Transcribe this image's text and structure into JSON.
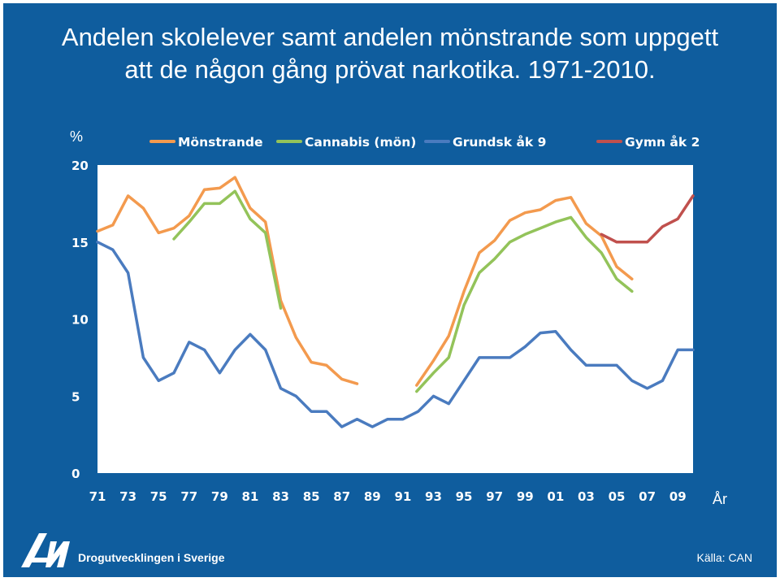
{
  "title_lines": [
    "Andelen skolelever samt andelen mönstrande som uppgett",
    "att de någon gång prövat narkotika. 1971-2010."
  ],
  "footer": {
    "organization": "Drogutvecklingen i Sverige",
    "source": "Källa: CAN",
    "logo_text": "CAN"
  },
  "colors": {
    "background": "#0f5d9e",
    "plot_area": "#ffffff",
    "monstrande": "#f39a4e",
    "cannabis": "#93c35a",
    "grundsk": "#4a7bbf",
    "gymn": "#c0504d"
  },
  "chart_data": {
    "type": "line",
    "title": "Andelen skolelever samt andelen mönstrande som uppgett att de någon gång prövat narkotika. 1971-2010.",
    "ylabel": "%",
    "xlabel": "År",
    "ylim": [
      0,
      20
    ],
    "yticks": [
      "0",
      "5",
      "10",
      "15",
      "20"
    ],
    "xticks": [
      "71",
      "73",
      "75",
      "77",
      "79",
      "81",
      "83",
      "85",
      "87",
      "89",
      "91",
      "93",
      "95",
      "97",
      "99",
      "01",
      "03",
      "05",
      "07",
      "09"
    ],
    "legend_position": "top",
    "series": [
      {
        "name": "Mönstrande",
        "color_key": "monstrande",
        "segments": [
          [
            [
              1971,
              15.7
            ],
            [
              1972,
              16.1
            ],
            [
              1973,
              18.0
            ],
            [
              1974,
              17.2
            ],
            [
              1975,
              15.6
            ],
            [
              1976,
              15.9
            ],
            [
              1977,
              16.7
            ],
            [
              1978,
              18.4
            ],
            [
              1979,
              18.5
            ],
            [
              1980,
              19.2
            ],
            [
              1981,
              17.2
            ],
            [
              1982,
              16.3
            ],
            [
              1983,
              11.2
            ],
            [
              1984,
              8.8
            ],
            [
              1985,
              7.2
            ],
            [
              1986,
              7.0
            ],
            [
              1987,
              6.1
            ],
            [
              1988,
              5.8
            ]
          ],
          [
            [
              1991.9,
              5.7
            ],
            [
              1993,
              7.3
            ],
            [
              1994,
              8.9
            ],
            [
              1995,
              11.8
            ],
            [
              1996,
              14.3
            ],
            [
              1997,
              15.1
            ],
            [
              1998,
              16.4
            ],
            [
              1999,
              16.9
            ],
            [
              2000,
              17.1
            ],
            [
              2001,
              17.7
            ],
            [
              2002,
              17.9
            ],
            [
              2003,
              16.2
            ],
            [
              2004,
              15.4
            ],
            [
              2005,
              13.4
            ],
            [
              2006,
              12.6
            ]
          ]
        ]
      },
      {
        "name": "Cannabis (mön)",
        "color_key": "cannabis",
        "segments": [
          [
            [
              1976,
              15.2
            ],
            [
              1977,
              16.3
            ],
            [
              1978,
              17.5
            ],
            [
              1979,
              17.5
            ],
            [
              1980,
              18.3
            ],
            [
              1981,
              16.5
            ],
            [
              1982,
              15.6
            ],
            [
              1983,
              10.7
            ]
          ],
          [
            [
              1991.9,
              5.3
            ],
            [
              1993,
              6.5
            ],
            [
              1994,
              7.5
            ],
            [
              1995,
              10.9
            ],
            [
              1996,
              13.0
            ],
            [
              1997,
              13.9
            ],
            [
              1998,
              15.0
            ],
            [
              1999,
              15.5
            ],
            [
              2000,
              15.9
            ],
            [
              2001,
              16.3
            ],
            [
              2002,
              16.6
            ],
            [
              2003,
              15.3
            ],
            [
              2004,
              14.3
            ],
            [
              2005,
              12.6
            ],
            [
              2006,
              11.8
            ]
          ]
        ]
      },
      {
        "name": "Grundsk åk 9",
        "color_key": "grundsk",
        "segments": [
          [
            [
              1971,
              15.0
            ],
            [
              1972,
              14.5
            ],
            [
              1973,
              13.0
            ],
            [
              1974,
              7.5
            ],
            [
              1975,
              6.0
            ],
            [
              1976,
              6.5
            ],
            [
              1977,
              8.5
            ],
            [
              1978,
              8.0
            ],
            [
              1979,
              6.5
            ],
            [
              1980,
              8.0
            ],
            [
              1981,
              9.0
            ],
            [
              1982,
              8.0
            ],
            [
              1983,
              5.5
            ],
            [
              1984,
              5.0
            ],
            [
              1985,
              4.0
            ],
            [
              1986,
              4.0
            ],
            [
              1987,
              3.0
            ],
            [
              1988,
              3.5
            ],
            [
              1989,
              3.0
            ],
            [
              1990,
              3.5
            ],
            [
              1991,
              3.5
            ],
            [
              1992,
              4.0
            ],
            [
              1993,
              5.0
            ],
            [
              1994,
              4.5
            ],
            [
              1995,
              6.0
            ],
            [
              1996,
              7.5
            ],
            [
              1997,
              7.5
            ],
            [
              1998,
              7.5
            ],
            [
              1999,
              8.2
            ],
            [
              2000,
              9.1
            ],
            [
              2001,
              9.2
            ],
            [
              2002,
              8.0
            ],
            [
              2003,
              7.0
            ],
            [
              2004,
              7.0
            ],
            [
              2005,
              7.0
            ],
            [
              2006,
              6.0
            ],
            [
              2007,
              5.5
            ],
            [
              2008,
              6.0
            ],
            [
              2009,
              8.0
            ],
            [
              2010,
              8.0
            ]
          ]
        ]
      },
      {
        "name": "Gymn åk 2",
        "color_key": "gymn",
        "segments": [
          [
            [
              2004,
              15.5
            ],
            [
              2005,
              15.0
            ],
            [
              2006,
              15.0
            ],
            [
              2007,
              15.0
            ],
            [
              2008,
              16.0
            ],
            [
              2009,
              16.5
            ],
            [
              2010,
              18.0
            ]
          ]
        ]
      }
    ]
  }
}
